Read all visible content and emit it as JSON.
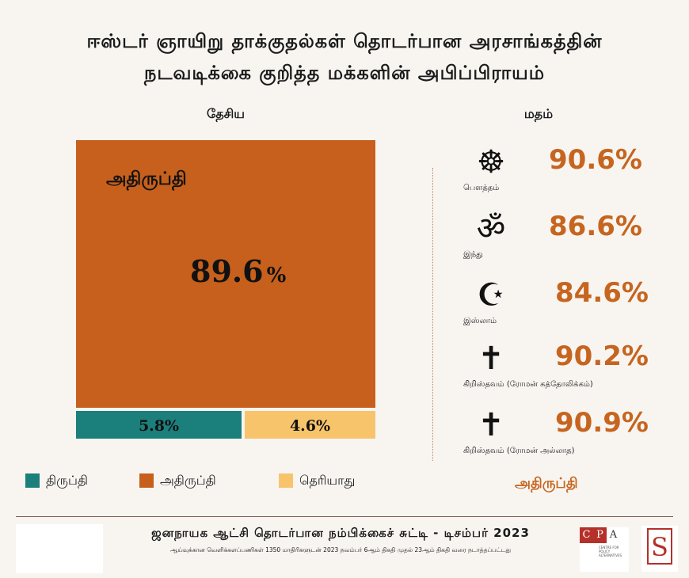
{
  "title": {
    "line1": "ஈஸ்டர் ஞாயிறு தாக்குதல்கள் தொடர்பான அரசாங்கத்தின்",
    "line2": "நடவடிக்கை குறித்த மக்களின் அபிப்பிராயம்"
  },
  "national_label": "தேசிய",
  "religion_label": "மதம்",
  "colors": {
    "satisfied": "#1b7f7c",
    "dissatisfied": "#c6601c",
    "dont_know": "#f7c46c",
    "accent_text": "#c6651f",
    "background": "#f8f5f1"
  },
  "chart_data": [
    {
      "type": "treemap",
      "title": "தேசிய",
      "categories": [
        "அதிருப்தி",
        "திருப்தி",
        "தெரியாது"
      ],
      "values": [
        89.6,
        5.8,
        4.6
      ],
      "labels": [
        "89.6",
        "5.8%",
        "4.6%"
      ],
      "pct_sign": "%",
      "big_category_label": "அதிருப்தி",
      "legend": [
        {
          "label": "திருப்தி",
          "color": "#1b7f7c"
        },
        {
          "label": "அதிருப்தி",
          "color": "#c6601c"
        },
        {
          "label": "தெரியாது",
          "color": "#f7c46c"
        }
      ]
    },
    {
      "type": "table",
      "title": "மதம்",
      "measure_label": "அதிருப்தி",
      "rows": [
        {
          "religion": "பௌத்தம்",
          "icon": "dharma-wheel-icon",
          "glyph": "☸",
          "value": "90.6%"
        },
        {
          "religion": "இந்து",
          "icon": "om-icon",
          "glyph": "ॐ",
          "value": "86.6%"
        },
        {
          "religion": "இஸ்லாம்",
          "icon": "crescent-star-icon",
          "glyph": "☪",
          "value": "84.6%"
        },
        {
          "religion": "கிறிஸ்தவம் (ரோமன் கத்தோலிக்கம்)",
          "icon": "cross-icon",
          "glyph": "✝",
          "value": "90.2%"
        },
        {
          "religion": "கிறிஸ்தவம் (ரோமன் அல்லாத)",
          "icon": "cross-icon",
          "glyph": "✝",
          "value": "90.9%"
        }
      ]
    }
  ],
  "footer": {
    "title": "ஜனநாயக ஆட்சி தொடர்பான நம்பிக்கைச் சுட்டி - டிசம்பர் 2023",
    "subtitle": "ஆய்வுக்கான வெளிக்களப்பணிகள் 1350 மாதிரிகளுடன் 2023 நவம்பர் 6ஆம் திகதி முதல் 23ஆம் திகதி வரை நடாத்தப்பட்டது",
    "cpa_letters": [
      "C",
      "P",
      "A"
    ],
    "cpa_name": "CENTRE FOR POLICY ALTERNATIVES",
    "sr_mark": "S"
  }
}
